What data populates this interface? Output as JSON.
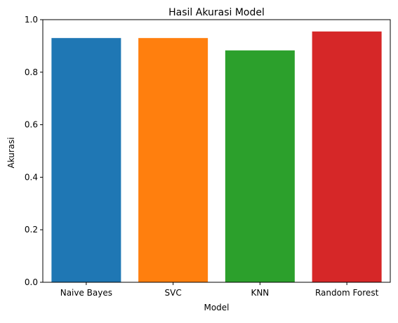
{
  "chart_data": {
    "type": "bar",
    "title": "Hasil Akurasi Model",
    "xlabel": "Model",
    "ylabel": "Akurasi",
    "categories": [
      "Naive Bayes",
      "SVC",
      "KNN",
      "Random Forest"
    ],
    "values": [
      0.93,
      0.93,
      0.883,
      0.955
    ],
    "colors": [
      "#1f77b4",
      "#ff7f0e",
      "#2ca02c",
      "#d62728"
    ],
    "ylim": [
      0,
      1.0
    ],
    "yticks": [
      0.0,
      0.2,
      0.4,
      0.6,
      0.8,
      1.0
    ],
    "ytick_labels": [
      "0.0",
      "0.2",
      "0.4",
      "0.6",
      "0.8",
      "1.0"
    ],
    "grid": false,
    "legend": "none"
  }
}
